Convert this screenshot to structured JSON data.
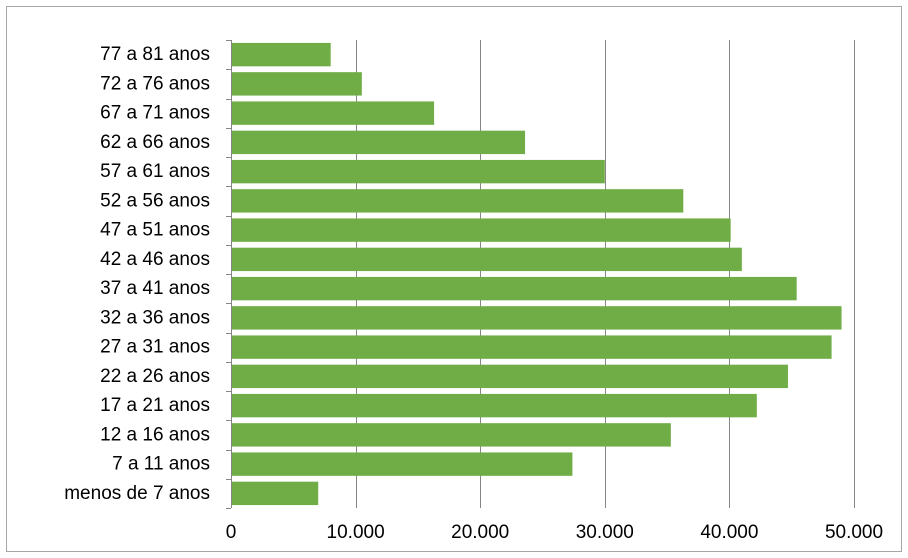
{
  "chart_data": {
    "type": "bar",
    "orientation": "horizontal",
    "categories": [
      "77 a 81 anos",
      "72 a 76 anos",
      "67 a 71 anos",
      "62 a 66 anos",
      "57 a 61 anos",
      "52 a 56 anos",
      "47 a 51 anos",
      "42 a 46 anos",
      "37 a 41 anos",
      "32 a 36 anos",
      "27 a 31 anos",
      "22 a 26 anos",
      "17 a 21 anos",
      "12 a 16 anos",
      "7 a 11 anos",
      "menos de 7 anos"
    ],
    "values": [
      8000,
      10500,
      16300,
      23600,
      30000,
      36300,
      40100,
      41000,
      45400,
      49000,
      48200,
      44700,
      42200,
      35300,
      27400,
      7000
    ],
    "xticks": [
      0,
      10000,
      20000,
      30000,
      40000,
      50000
    ],
    "xtick_labels": [
      "0",
      "10.000",
      "20.000",
      "30.000",
      "40.000",
      "50.000"
    ],
    "xlim": [
      0,
      50000
    ],
    "grid": true,
    "legend": "none",
    "bar_color": "#70ad47",
    "grid_color": "#868686"
  }
}
